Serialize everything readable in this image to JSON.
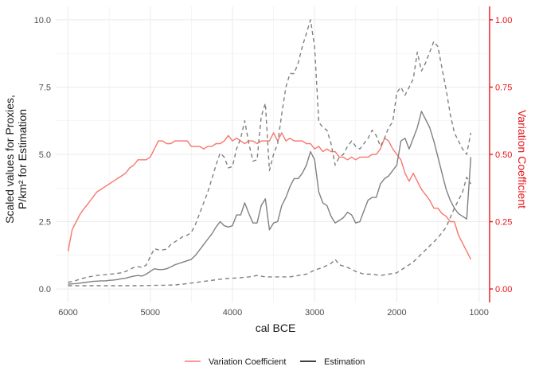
{
  "chart_data": {
    "type": "line",
    "title": "",
    "xlabel": "cal BCE",
    "ylabel_line1": "Scaled values for Proxies,",
    "ylabel_line2": "P/km² for Estimation",
    "ylabel_right": "Variation Coefficient",
    "x_reversed": true,
    "xlim": [
      6000,
      1000
    ],
    "ylim": [
      0,
      10
    ],
    "ylim_right": [
      0,
      1
    ],
    "x_ticks": [
      6000,
      5000,
      4000,
      3000,
      2000,
      1000
    ],
    "x_tick_labels": [
      "6000",
      "5000",
      "4000",
      "3000",
      "2000",
      "1000"
    ],
    "y_ticks": [
      0,
      2.5,
      5,
      7.5,
      10
    ],
    "y_tick_labels": [
      "0.0",
      "2.5",
      "5.0",
      "7.5",
      "10.0"
    ],
    "y_right_ticks": [
      0,
      0.25,
      0.5,
      0.75,
      1
    ],
    "y_right_tick_labels": [
      "0.00",
      "0.25",
      "0.50",
      "0.75",
      "1.00"
    ],
    "grid": true,
    "legend_position": "bottom",
    "legend": [
      {
        "label": "Variation Coefficient",
        "color": "#f8766d"
      },
      {
        "label": "Estimation",
        "color": "#000000"
      }
    ],
    "colors": {
      "variation": "#f8766d",
      "estimation": "#808080",
      "right_axis": "#e8141b",
      "grid": "#ebebeb"
    },
    "series": [
      {
        "name": "Variation Coefficient",
        "axis": "right",
        "style": "solid",
        "x": [
          6000,
          5950,
          5900,
          5850,
          5800,
          5750,
          5700,
          5650,
          5600,
          5550,
          5500,
          5450,
          5400,
          5350,
          5300,
          5250,
          5200,
          5150,
          5100,
          5050,
          5000,
          4950,
          4900,
          4850,
          4800,
          4750,
          4700,
          4650,
          4600,
          4550,
          4500,
          4450,
          4400,
          4350,
          4300,
          4250,
          4200,
          4150,
          4100,
          4050,
          4000,
          3950,
          3900,
          3850,
          3800,
          3750,
          3700,
          3650,
          3600,
          3550,
          3500,
          3450,
          3400,
          3350,
          3300,
          3250,
          3200,
          3150,
          3100,
          3050,
          3000,
          2950,
          2900,
          2850,
          2800,
          2750,
          2700,
          2650,
          2600,
          2550,
          2500,
          2450,
          2400,
          2350,
          2300,
          2250,
          2200,
          2150,
          2100,
          2050,
          2000,
          1950,
          1900,
          1850,
          1800,
          1750,
          1700,
          1650,
          1600,
          1550,
          1500,
          1450,
          1400,
          1350,
          1300,
          1250,
          1200,
          1150,
          1100
        ],
        "values": [
          0.14,
          0.22,
          0.25,
          0.28,
          0.3,
          0.32,
          0.34,
          0.36,
          0.37,
          0.38,
          0.39,
          0.4,
          0.41,
          0.42,
          0.43,
          0.45,
          0.46,
          0.48,
          0.48,
          0.48,
          0.49,
          0.52,
          0.55,
          0.55,
          0.54,
          0.54,
          0.55,
          0.55,
          0.55,
          0.55,
          0.53,
          0.53,
          0.53,
          0.52,
          0.53,
          0.53,
          0.54,
          0.54,
          0.55,
          0.57,
          0.55,
          0.56,
          0.55,
          0.54,
          0.55,
          0.55,
          0.54,
          0.55,
          0.55,
          0.55,
          0.58,
          0.55,
          0.58,
          0.55,
          0.56,
          0.55,
          0.55,
          0.55,
          0.54,
          0.54,
          0.52,
          0.53,
          0.51,
          0.52,
          0.51,
          0.51,
          0.49,
          0.49,
          0.48,
          0.49,
          0.48,
          0.49,
          0.49,
          0.49,
          0.5,
          0.5,
          0.52,
          0.56,
          0.55,
          0.52,
          0.5,
          0.48,
          0.43,
          0.4,
          0.43,
          0.4,
          0.37,
          0.35,
          0.33,
          0.3,
          0.3,
          0.28,
          0.27,
          0.25,
          0.25,
          0.2,
          0.17,
          0.14,
          0.11
        ]
      },
      {
        "name": "",
        "role": "estimation-upper",
        "axis": "left",
        "style": "dashed",
        "x": [
          6000,
          5950,
          5900,
          5850,
          5800,
          5750,
          5700,
          5650,
          5600,
          5550,
          5500,
          5450,
          5400,
          5350,
          5300,
          5250,
          5200,
          5150,
          5100,
          5050,
          5000,
          4950,
          4900,
          4850,
          4800,
          4750,
          4700,
          4650,
          4600,
          4550,
          4500,
          4450,
          4400,
          4350,
          4300,
          4250,
          4200,
          4150,
          4100,
          4050,
          4000,
          3950,
          3900,
          3850,
          3800,
          3750,
          3700,
          3650,
          3600,
          3550,
          3500,
          3450,
          3400,
          3350,
          3300,
          3250,
          3200,
          3150,
          3100,
          3050,
          3000,
          2950,
          2900,
          2850,
          2800,
          2750,
          2700,
          2650,
          2600,
          2550,
          2500,
          2450,
          2400,
          2350,
          2300,
          2250,
          2200,
          2150,
          2100,
          2050,
          2000,
          1950,
          1900,
          1850,
          1800,
          1750,
          1700,
          1650,
          1600,
          1550,
          1500,
          1450,
          1400,
          1350,
          1300,
          1250,
          1200,
          1150,
          1100
        ],
        "values": [
          0.25,
          0.28,
          0.32,
          0.37,
          0.41,
          0.45,
          0.47,
          0.5,
          0.52,
          0.53,
          0.55,
          0.56,
          0.58,
          0.6,
          0.65,
          0.72,
          0.8,
          0.83,
          0.8,
          0.88,
          1.2,
          1.5,
          1.45,
          1.45,
          1.48,
          1.65,
          1.75,
          1.85,
          1.95,
          2.0,
          2.1,
          2.4,
          2.8,
          3.2,
          3.6,
          4.1,
          4.6,
          5.05,
          4.9,
          4.5,
          4.55,
          5.2,
          5.6,
          6.25,
          5.4,
          4.75,
          4.8,
          6.4,
          6.9,
          4.4,
          5.0,
          5.4,
          6.5,
          7.5,
          8.0,
          8.0,
          8.4,
          9.0,
          9.5,
          10.0,
          9.0,
          6.2,
          6.0,
          5.9,
          5.4,
          4.6,
          4.9,
          5.0,
          5.3,
          5.5,
          5.3,
          5.2,
          5.4,
          5.6,
          5.9,
          5.7,
          5.3,
          5.6,
          6.0,
          6.2,
          7.3,
          7.5,
          7.2,
          7.5,
          7.8,
          8.8,
          8.1,
          8.4,
          8.8,
          9.2,
          9.0,
          8.2,
          7.4,
          6.5,
          5.8,
          5.5,
          5.2,
          5.0,
          5.8
        ]
      },
      {
        "name": "Estimation",
        "axis": "left",
        "style": "solid",
        "x": [
          6000,
          5950,
          5900,
          5850,
          5800,
          5750,
          5700,
          5650,
          5600,
          5550,
          5500,
          5450,
          5400,
          5350,
          5300,
          5250,
          5200,
          5150,
          5100,
          5050,
          5000,
          4950,
          4900,
          4850,
          4800,
          4750,
          4700,
          4650,
          4600,
          4550,
          4500,
          4450,
          4400,
          4350,
          4300,
          4250,
          4200,
          4150,
          4100,
          4050,
          4000,
          3950,
          3900,
          3850,
          3800,
          3750,
          3700,
          3650,
          3600,
          3550,
          3500,
          3450,
          3400,
          3350,
          3300,
          3250,
          3200,
          3150,
          3100,
          3050,
          3000,
          2950,
          2900,
          2850,
          2800,
          2750,
          2700,
          2650,
          2600,
          2550,
          2500,
          2450,
          2400,
          2350,
          2300,
          2250,
          2200,
          2150,
          2100,
          2050,
          2000,
          1950,
          1900,
          1850,
          1800,
          1750,
          1700,
          1650,
          1600,
          1550,
          1500,
          1450,
          1400,
          1350,
          1300,
          1250,
          1200,
          1150,
          1100
        ],
        "values": [
          0.18,
          0.19,
          0.2,
          0.22,
          0.24,
          0.26,
          0.28,
          0.29,
          0.3,
          0.3,
          0.32,
          0.33,
          0.35,
          0.38,
          0.4,
          0.44,
          0.48,
          0.5,
          0.48,
          0.55,
          0.65,
          0.75,
          0.72,
          0.72,
          0.75,
          0.82,
          0.9,
          0.95,
          1.0,
          1.05,
          1.1,
          1.25,
          1.45,
          1.65,
          1.85,
          2.05,
          2.3,
          2.5,
          2.35,
          2.3,
          2.35,
          2.75,
          2.75,
          3.2,
          2.8,
          2.45,
          2.45,
          3.1,
          3.35,
          2.2,
          2.45,
          2.5,
          3.1,
          3.4,
          3.8,
          4.1,
          4.1,
          4.3,
          4.6,
          5.1,
          4.8,
          3.6,
          3.2,
          3.1,
          2.7,
          2.45,
          2.55,
          2.65,
          2.85,
          2.75,
          2.45,
          2.5,
          2.9,
          3.3,
          3.4,
          3.4,
          3.9,
          4.1,
          4.2,
          4.4,
          4.6,
          5.5,
          5.6,
          5.2,
          5.6,
          6.0,
          6.6,
          6.3,
          6.0,
          5.5,
          4.9,
          4.3,
          3.7,
          3.3,
          3.0,
          2.8,
          2.7,
          2.6,
          4.9
        ]
      },
      {
        "name": "",
        "role": "estimation-lower",
        "axis": "left",
        "style": "dashed",
        "x": [
          6000,
          5900,
          5800,
          5700,
          5600,
          5500,
          5400,
          5300,
          5200,
          5100,
          5000,
          4900,
          4800,
          4700,
          4600,
          4500,
          4400,
          4300,
          4200,
          4100,
          4000,
          3900,
          3800,
          3700,
          3600,
          3500,
          3400,
          3300,
          3200,
          3100,
          3000,
          2900,
          2800,
          2750,
          2700,
          2600,
          2500,
          2400,
          2300,
          2200,
          2100,
          2000,
          1900,
          1800,
          1700,
          1600,
          1500,
          1400,
          1300,
          1250,
          1200,
          1150,
          1100
        ],
        "values": [
          0.12,
          0.12,
          0.12,
          0.12,
          0.12,
          0.12,
          0.12,
          0.12,
          0.12,
          0.12,
          0.13,
          0.14,
          0.14,
          0.15,
          0.18,
          0.22,
          0.26,
          0.3,
          0.34,
          0.38,
          0.4,
          0.42,
          0.45,
          0.5,
          0.45,
          0.45,
          0.45,
          0.45,
          0.5,
          0.55,
          0.7,
          0.8,
          0.95,
          1.1,
          0.9,
          0.8,
          0.65,
          0.55,
          0.55,
          0.5,
          0.55,
          0.6,
          0.8,
          1.0,
          1.3,
          1.6,
          1.9,
          2.3,
          3.0,
          3.3,
          3.6,
          4.15,
          3.9
        ]
      }
    ]
  }
}
